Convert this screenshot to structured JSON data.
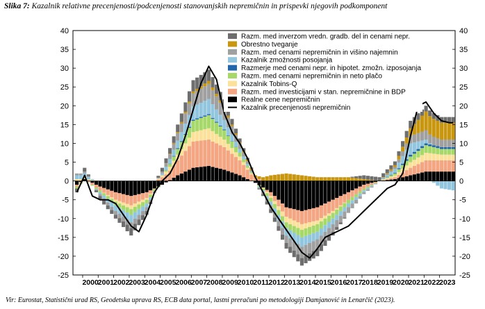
{
  "caption": {
    "label": "Slika 7:",
    "text": "Kazalnik relativne precenjenosti/podcenjenosti stanovanjskih nepremičnin in prispevki njegovih podkomponent"
  },
  "source_note": "Vir: Eurostat, Statistični urad RS, Geodetska uprava RS, ECB data portal, lastni preračuni po metodologiji Damjanović in Lenarčič (2023).",
  "chart_data": {
    "type": "bar",
    "stacked": true,
    "title": "",
    "xlabel": "",
    "ylabel": "",
    "ylim": [
      -25,
      40
    ],
    "yticks": [
      -25,
      -20,
      -15,
      -10,
      -5,
      0,
      5,
      10,
      15,
      20,
      25,
      30,
      35,
      40
    ],
    "y_tick_labels": [
      "-25",
      "-20",
      "-15",
      "-10",
      "-5",
      "0",
      "5",
      "10",
      "15",
      "20",
      "25",
      "30",
      "35",
      "40"
    ],
    "grid": false,
    "dual_y_axis_mirrored": true,
    "legend_position": "top-center",
    "x_labels": [
      "2000",
      "2001",
      "2002",
      "2003",
      "2004",
      "2005",
      "2006",
      "2007",
      "2008",
      "2009",
      "2010",
      "2011",
      "2012",
      "2013",
      "2014",
      "2015",
      "2016",
      "2017",
      "2018",
      "2019",
      "2020",
      "2021",
      "2022",
      "2023"
    ],
    "frequency": "quarterly",
    "start": "1999Q3",
    "end": "2023Q4",
    "anchors_note": "Approximate values read at yearly points from the figure; rendered per quarter by interpolation.",
    "anchor_times": [
      1999.5,
      2000,
      2001,
      2002,
      2003,
      2004,
      2005,
      2006,
      2007,
      2008,
      2009,
      2010,
      2011,
      2012,
      2013,
      2014,
      2015,
      2016,
      2017,
      2018,
      2019,
      2020,
      2021,
      2022,
      2023,
      2023.75
    ],
    "series": [
      {
        "name": "Realne cene nepremičnin",
        "color": "#000000",
        "values": [
          -1,
          0.5,
          -1.5,
          -3,
          -4,
          -3,
          -1,
          1.5,
          3.5,
          4,
          3,
          1.5,
          -0.5,
          -3,
          -7,
          -8,
          -7,
          -5,
          -3,
          -1,
          0,
          0.5,
          1.5,
          2.5,
          2.5,
          2.5
        ]
      },
      {
        "name": "Razm. med investicijami v stan. nepremičnine in BDP",
        "color": "#f4a582",
        "values": [
          -0.5,
          0,
          -1,
          -2,
          -2.5,
          -1.5,
          1,
          4,
          7,
          7,
          6,
          4,
          1,
          -1,
          -2.5,
          -3.5,
          -3.5,
          -3,
          -2,
          -1,
          0,
          0.5,
          2,
          3,
          3,
          3
        ]
      },
      {
        "name": "Kazalnik Tobins-Q",
        "color": "#fbe19a",
        "values": [
          0.5,
          0.5,
          0,
          -0.5,
          -1,
          -0.5,
          0.5,
          1.5,
          2.5,
          3,
          2,
          1,
          0,
          -0.5,
          -1.5,
          -1.5,
          -1,
          -0.5,
          0,
          0,
          0,
          0.5,
          1.5,
          2,
          1.5,
          1.5
        ]
      },
      {
        "name": "Razm. med cenami nepremičnin in neto plačo",
        "color": "#a6d96a",
        "values": [
          -0.5,
          0,
          -0.5,
          -1,
          -1.5,
          -1,
          0,
          1.5,
          3,
          3.5,
          2.5,
          1,
          0,
          -1,
          -1.5,
          -2,
          -2,
          -1.5,
          -1,
          -0.5,
          0,
          0.5,
          1.5,
          2,
          1.5,
          1.5
        ]
      },
      {
        "name": "Razmerje med cenami nepr. in hipotet. zmožn. izposojanja",
        "color": "#2166ac",
        "values": [
          0,
          0,
          0,
          0,
          0,
          0,
          0,
          0.2,
          0.3,
          0.3,
          0.2,
          0,
          0,
          0,
          0,
          0,
          0,
          0,
          0,
          0,
          0,
          0.2,
          0.5,
          0.5,
          0.5,
          0.5
        ]
      },
      {
        "name": "Kazalnik zmožnosti posojanja",
        "color": "#92c5de",
        "values": [
          1,
          1,
          -0.5,
          -1.5,
          -2,
          -1,
          0.5,
          2,
          3.5,
          4,
          2.5,
          1,
          0,
          -1,
          -2,
          -2.5,
          -2,
          -1.5,
          -1,
          -0.5,
          0,
          1,
          3,
          1,
          -2,
          -2.5
        ]
      },
      {
        "name": "Razm. med cenami nepremičnin in višino najemnin",
        "color": "#a0a0a0",
        "values": [
          0.5,
          0.5,
          -0.5,
          -1,
          -1.5,
          -1,
          0.5,
          2,
          3.5,
          4,
          3,
          1.5,
          0,
          -1,
          -2,
          -3,
          -2.5,
          -2,
          -1.5,
          -0.5,
          0,
          0.5,
          2,
          2.5,
          2,
          2
        ]
      },
      {
        "name": "Obrestno tveganje",
        "color": "#c8960f",
        "values": [
          0,
          0,
          0,
          0,
          0,
          0,
          0,
          0.3,
          0.5,
          0.8,
          0.5,
          0.3,
          0.5,
          1.5,
          2,
          1.5,
          1,
          1,
          1,
          0.5,
          0,
          0.5,
          2,
          5,
          4.5,
          4.5
        ]
      },
      {
        "name": "Razm. med inverzom vredn. gradb. del in cenami nepr.",
        "color": "#6e6e6e",
        "values": [
          -1,
          1,
          -1,
          -1,
          -2,
          -1,
          1,
          2,
          3,
          3,
          2,
          1,
          0,
          -1,
          -1.5,
          -2,
          -2,
          -1,
          0,
          1,
          1,
          1,
          2,
          1.5,
          1.5,
          1.5
        ]
      }
    ],
    "line": {
      "name": "Kazalnik precenjenosti nepremičnin",
      "color": "#000000",
      "anchor_times": [
        1999.5,
        2000,
        2000.5,
        2001,
        2001.5,
        2002,
        2002.5,
        2003,
        2003.5,
        2004,
        2004.5,
        2005,
        2005.5,
        2006,
        2006.5,
        2007,
        2007.5,
        2008,
        2008.5,
        2009,
        2009.5,
        2010,
        2010.5,
        2011,
        2011.5,
        2012,
        2012.5,
        2013,
        2013.5,
        2014,
        2014.5,
        2015,
        2015.5,
        2016,
        2016.5,
        2017,
        2017.5,
        2018,
        2018.5,
        2019,
        2019.5,
        2020,
        2020.5,
        2021,
        2021.5,
        2022,
        2022.5,
        2023,
        2023.5,
        2023.75
      ],
      "values": [
        -3,
        1.5,
        -4,
        -5,
        -5,
        -6,
        -9,
        -12,
        -13.5,
        -9,
        -3,
        0,
        2,
        6,
        12,
        19,
        26,
        30.5,
        27,
        18,
        13,
        10,
        6,
        1,
        -3,
        -7,
        -10,
        -13,
        -16,
        -19,
        -20.5,
        -18,
        -15,
        -14,
        -13,
        -12,
        -10,
        -8,
        -6,
        -4,
        -2,
        -1,
        2,
        12,
        20,
        21,
        18,
        16,
        15.5,
        15.5
      ]
    }
  }
}
